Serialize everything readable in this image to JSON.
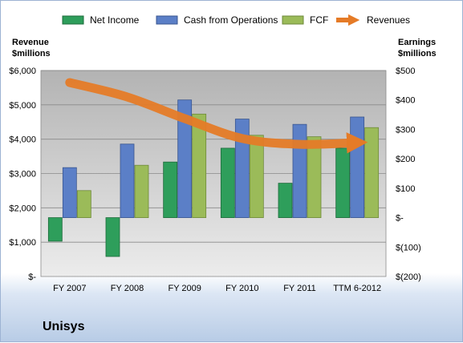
{
  "company": "Unisys",
  "colors": {
    "net_income": "#2e9e5b",
    "cash_from_operations": "#5b7fc7",
    "fcf": "#9bbb59",
    "revenues": "#e57b27",
    "plot_bg_top": "#b3b3b3",
    "plot_bg_bottom": "#ececec"
  },
  "chart_data": {
    "type": "bar",
    "categories": [
      "FY 2007",
      "FY 2008",
      "FY 2009",
      "FY 2010",
      "FY 2011",
      "TTM 6-2012"
    ],
    "legend": {
      "placement": "top",
      "entries": [
        "Net Income",
        "Cash from Operations",
        "FCF",
        "Revenues"
      ]
    },
    "left_axis": {
      "label_line1": "Revenue",
      "label_line2": "$millions",
      "ylim": [
        0,
        6000
      ],
      "ticks": [
        0,
        1000,
        2000,
        3000,
        4000,
        5000,
        6000
      ],
      "tick_labels": [
        "$-",
        "$1,000",
        "$2,000",
        "$3,000",
        "$4,000",
        "$5,000",
        "$6,000"
      ]
    },
    "right_axis": {
      "label_line1": "Earnings",
      "label_line2": "$millions",
      "ylim": [
        -200,
        500
      ],
      "ticks": [
        -200,
        -100,
        0,
        100,
        200,
        300,
        400,
        500
      ],
      "tick_labels": [
        "$(200)",
        "$(100)",
        "$-",
        "$100",
        "$200",
        "$300",
        "$400",
        "$500"
      ]
    },
    "series": [
      {
        "name": "Net Income",
        "axis": "right",
        "kind": "bar",
        "values": [
          -80,
          -132,
          189,
          236,
          117,
          236
        ]
      },
      {
        "name": "Cash from Operations",
        "axis": "right",
        "kind": "bar",
        "values": [
          170,
          250,
          400,
          335,
          317,
          342
        ]
      },
      {
        "name": "FCF",
        "axis": "right",
        "kind": "bar",
        "values": [
          92,
          178,
          352,
          280,
          275,
          306
        ]
      },
      {
        "name": "Revenues",
        "axis": "left",
        "kind": "line",
        "values": [
          5650,
          5230,
          4600,
          4020,
          3850,
          3900
        ]
      }
    ]
  }
}
